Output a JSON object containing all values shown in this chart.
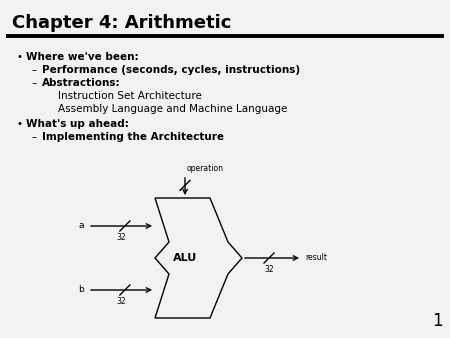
{
  "title": "Chapter 4: Arithmetic",
  "slide_bg": "#f2f2f2",
  "title_color": "#000000",
  "bullet1": "Where we've been:",
  "sub1a": "Performance (seconds, cycles, instructions)",
  "sub1b": "Abstractions:",
  "sub1b1": "Instruction Set Architecture",
  "sub1b2": "Assembly Language and Machine Language",
  "bullet2": "What's up ahead:",
  "sub2a": "Implementing the Architecture",
  "alu_label": "ALU",
  "label_a": "a",
  "label_b": "b",
  "label_operation": "operation",
  "label_result": "result",
  "label_32_a": "32",
  "label_32_b": "32",
  "label_32_r": "32",
  "page_num": "1"
}
